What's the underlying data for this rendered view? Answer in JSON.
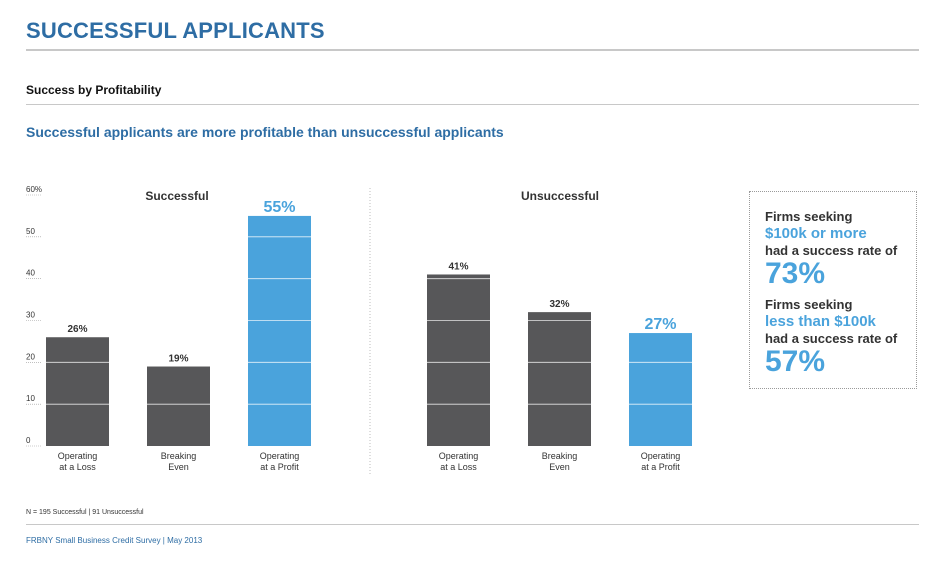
{
  "header": {
    "title": "SUCCESSFUL APPLICANTS",
    "section": "Success by Profitability",
    "subtitle": "Successful applicants are more profitable than unsuccessful applicants"
  },
  "colors": {
    "dark": "#575759",
    "highlight": "#4aa3dc",
    "title_blue": "#2e6da4"
  },
  "chart_data": [
    {
      "type": "bar",
      "title": "Successful",
      "categories": [
        [
          "Operating",
          "at a Loss"
        ],
        [
          "Breaking",
          "Even"
        ],
        [
          "Operating",
          "at a Profit"
        ]
      ],
      "values": [
        26,
        19,
        55
      ],
      "labels": [
        "26%",
        "19%",
        "55%"
      ],
      "highlight": [
        false,
        false,
        true
      ],
      "ylim": [
        0,
        60
      ],
      "yticks": [
        "0",
        "10",
        "20",
        "30",
        "40",
        "50",
        "60%"
      ]
    },
    {
      "type": "bar",
      "title": "Unsuccessful",
      "categories": [
        [
          "Operating",
          "at a Loss"
        ],
        [
          "Breaking",
          "Even"
        ],
        [
          "Operating",
          "at a Profit"
        ]
      ],
      "values": [
        41,
        32,
        27
      ],
      "labels": [
        "41%",
        "32%",
        "27%"
      ],
      "highlight": [
        false,
        false,
        true
      ],
      "ylim": [
        0,
        60
      ]
    }
  ],
  "callout": {
    "line1": "Firms seeking",
    "line2": "$100k or more",
    "line3": "had a success rate of",
    "line4": "73%",
    "line5": "Firms seeking",
    "line6": "less than $100k",
    "line7": "had a success rate of",
    "line8": "57%"
  },
  "footnote": "N = 195 Successful  |  91 Unsuccessful",
  "footer": "FRBNY Small Business Credit Survey  |  May 2013"
}
